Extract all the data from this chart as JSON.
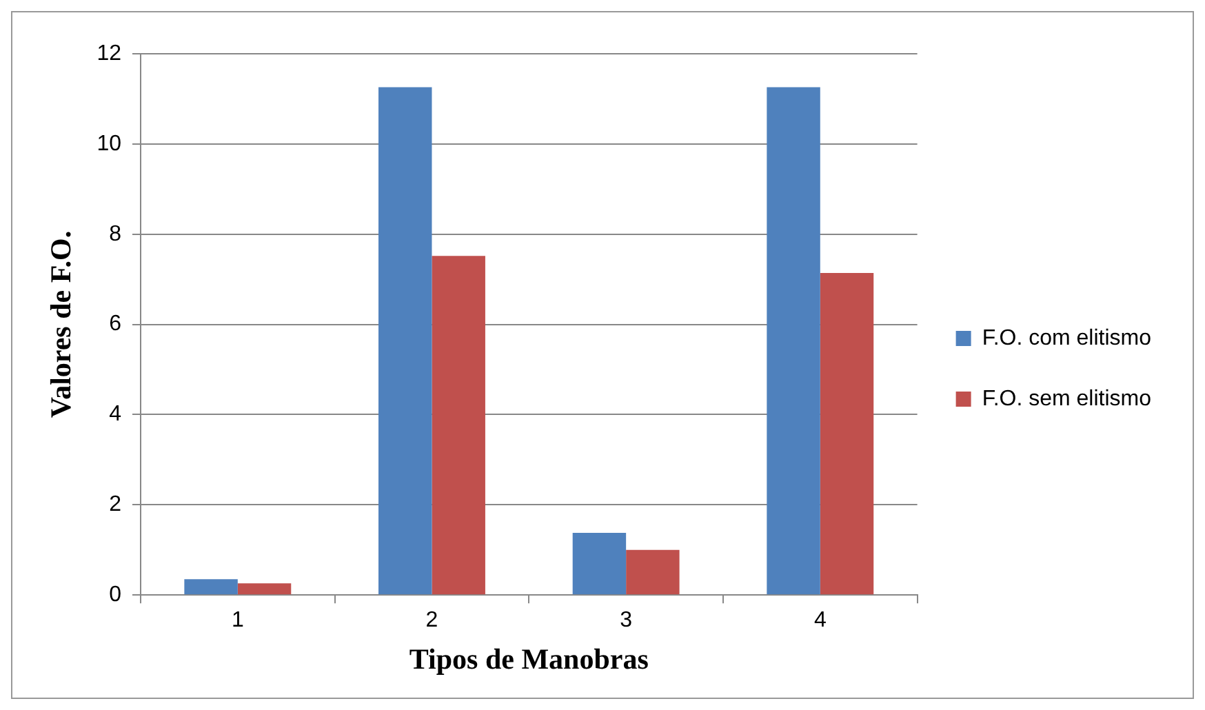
{
  "chart_data": {
    "type": "bar",
    "xlabel": "Tipos de Manobras",
    "ylabel": "Valores de F.O.",
    "categories": [
      "1",
      "2",
      "3",
      "4"
    ],
    "series": [
      {
        "name": "F.O. com elitismo",
        "color": "#4f81bd",
        "values": [
          0.35,
          11.26,
          1.38,
          11.26
        ]
      },
      {
        "name": "F.O. sem elitismo",
        "color": "#c0504d",
        "values": [
          0.26,
          7.52,
          1.0,
          7.14
        ]
      }
    ],
    "ylim": [
      0,
      12
    ],
    "yticks": [
      0,
      2,
      4,
      6,
      8,
      10,
      12
    ],
    "grid": "y",
    "legend": "right"
  }
}
